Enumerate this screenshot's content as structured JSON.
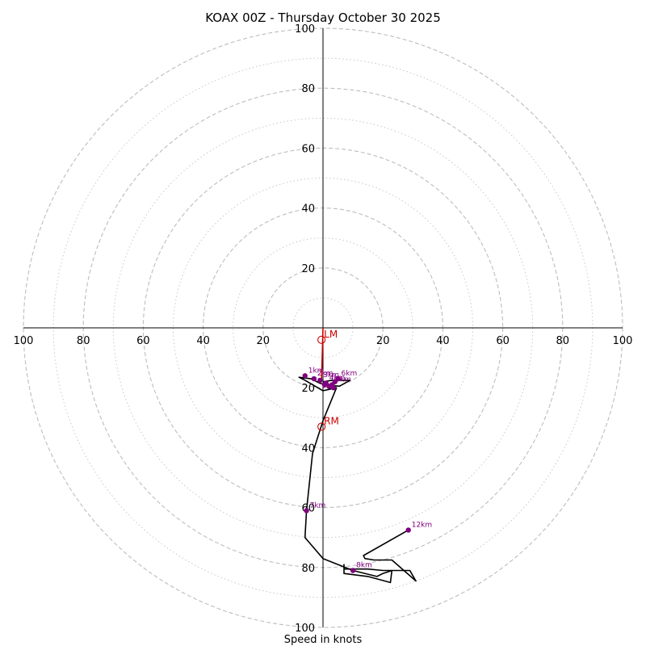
{
  "chart_data": {
    "type": "scatter",
    "subtype": "hodograph",
    "title": "KOAX 00Z - Thursday October 30 2025",
    "xlabel": "Speed in knots",
    "ylabel": "",
    "range": [
      0,
      100
    ],
    "ring_labels": [
      "20",
      "40",
      "60",
      "80",
      "100"
    ],
    "axis_tick_labels": {
      "left": [
        "100",
        "80",
        "60",
        "40",
        "20"
      ],
      "right": [
        "20",
        "40",
        "60",
        "80",
        "100"
      ],
      "top": [
        "20",
        "40",
        "60",
        "80",
        "100"
      ],
      "bottom": [
        "20",
        "40",
        "60",
        "80",
        "100"
      ]
    },
    "major_rings": [
      20,
      40,
      60,
      80,
      100
    ],
    "minor_rings": [
      10,
      30,
      50,
      70,
      90
    ],
    "grid": true,
    "hodograph": {
      "color": "#000000",
      "points": [
        [
          0,
          -18
        ],
        [
          3,
          -17.5
        ],
        [
          5.5,
          -17.5
        ],
        [
          9,
          -17.5
        ],
        [
          5.5,
          -19.5
        ],
        [
          1,
          -19
        ],
        [
          -1,
          -18.5
        ],
        [
          -4,
          -17
        ],
        [
          -8,
          -16.5
        ],
        [
          -6,
          -17.5
        ],
        [
          0,
          -21
        ],
        [
          4.5,
          -20
        ],
        [
          0,
          -31
        ],
        [
          -3.5,
          -42
        ],
        [
          -5.5,
          -61
        ],
        [
          -6,
          -70
        ],
        [
          0,
          -77
        ],
        [
          10,
          -81
        ],
        [
          18,
          -83
        ],
        [
          20,
          -82
        ],
        [
          23,
          -81
        ],
        [
          22.5,
          -85
        ],
        [
          15,
          -83
        ],
        [
          7,
          -82
        ],
        [
          7,
          -79
        ],
        [
          7,
          -80.5
        ],
        [
          15,
          -80.5
        ],
        [
          20,
          -81
        ],
        [
          29,
          -81
        ],
        [
          31,
          -84.5
        ],
        [
          23,
          -77.5
        ],
        [
          17,
          -77.5
        ],
        [
          14,
          -77
        ],
        [
          13.5,
          -76
        ],
        [
          28.5,
          -67.5
        ]
      ]
    },
    "height_markers": {
      "color": "#800080",
      "points": [
        {
          "label": "1km",
          "x": -6,
          "y": -16
        },
        {
          "label": "2km",
          "x": -3,
          "y": -17
        },
        {
          "label": "3km",
          "x": -1,
          "y": -17.5
        },
        {
          "label": "4km",
          "x": 1,
          "y": -18.5
        },
        {
          "label": "5km",
          "x": 3,
          "y": -19
        },
        {
          "label": "6km",
          "x": 5,
          "y": -17
        },
        {
          "label": "7km",
          "x": -5.5,
          "y": -61
        },
        {
          "label": "8km",
          "x": 10,
          "y": -81
        },
        {
          "label": "12km",
          "x": 28.5,
          "y": -67.5
        },
        {
          "label": "",
          "x": 0.5,
          "y": -19
        },
        {
          "label": "",
          "x": 3.5,
          "y": -20
        },
        {
          "label": "",
          "x": 2,
          "y": -19.5
        },
        {
          "label": "",
          "x": 4,
          "y": -18
        }
      ]
    },
    "storm_motion": {
      "color": "#cc0000",
      "markers": [
        {
          "label": "LM",
          "x": -0.5,
          "y": -4
        },
        {
          "label": "RM",
          "x": -0.5,
          "y": -33
        }
      ],
      "vector": {
        "x0": 0,
        "y0": 0,
        "x1": -0.5,
        "y1": -18
      }
    }
  }
}
